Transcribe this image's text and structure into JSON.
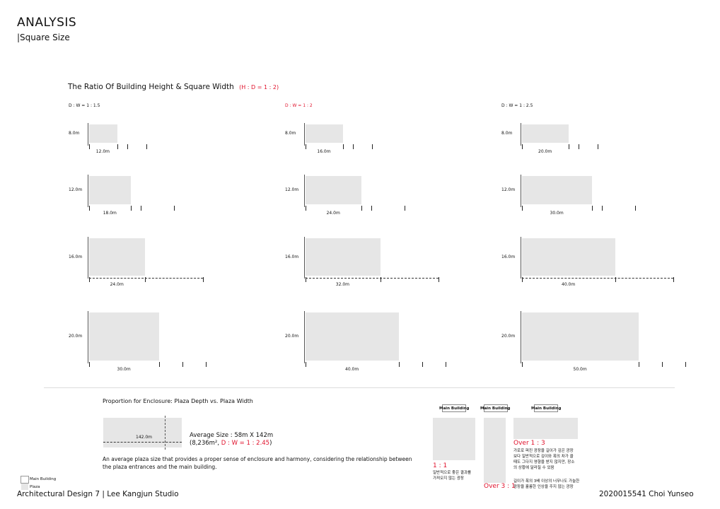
{
  "header": {
    "title": "ANALYSIS",
    "subtitle": "|Square Size"
  },
  "section": {
    "title": "The Ratio Of Building Height & Square Width",
    "highlight": "(H : D = 1 : 2)"
  },
  "columns": [
    {
      "label": "D : W = 1 : 1.5",
      "highlighted": false,
      "rows": [
        {
          "height": "8.0m",
          "width": "12.0m"
        },
        {
          "height": "12.0m",
          "width": "18.0m"
        },
        {
          "height": "16.0m",
          "width": "24.0m"
        },
        {
          "height": "20.0m",
          "width": "30.0m"
        }
      ]
    },
    {
      "label": "D : W = 1 : 2",
      "highlighted": true,
      "rows": [
        {
          "height": "8.0m",
          "width": "16.0m"
        },
        {
          "height": "12.0m",
          "width": "24.0m"
        },
        {
          "height": "16.0m",
          "width": "32.0m"
        },
        {
          "height": "20.0m",
          "width": "40.0m"
        }
      ]
    },
    {
      "label": "D : W = 1 : 2.5",
      "highlighted": false,
      "rows": [
        {
          "height": "8.0m",
          "width": "20.0m"
        },
        {
          "height": "12.0m",
          "width": "30.0m"
        },
        {
          "height": "16.0m",
          "width": "40.0m"
        },
        {
          "height": "20.0m",
          "width": "50.0m"
        }
      ]
    }
  ],
  "proportion": {
    "title": "Proportion for Enclosure: Plaza Depth vs. Plaza Width",
    "plaza_width": "142.0m",
    "avg_line1": "Average Size : 58m X 142m",
    "avg_line2_prefix": "(8,236m², ",
    "avg_line2_ratio": "D : W = 1 : 2.45",
    "avg_line2_suffix": ")",
    "paragraph": "An average plaza size that provides a proper sense of enclosure and harmony, considering the relationship between the plaza entrances and the main building."
  },
  "legend": [
    {
      "label": "Main Building",
      "color": "#ffffff"
    },
    {
      "label": "Plaza",
      "color": "#e6e6e6"
    }
  ],
  "ratios": {
    "main_building_label": "Main Building",
    "r1_title": "1 : 1",
    "r1_text": "일반적으로 좋은 결과를\n가져오지 않는 광장",
    "r2_title": "Over 3 : 1",
    "r3_title": "Over 1 : 3",
    "r3_text1": "가로로 퍼진 광장을 길이가 깊은 광장\n보다 일반적으로 깊이와 폭의 차가 클\n때도 그다지 영향을 받지 않지만, 장소\n의 상황에 달라질 수 있음",
    "r3_text2": "길이가 폭의 3배 이상의 너무나도 가늘한\n광장을 훌륭한 인상을 주지 않는 광장"
  },
  "footer": {
    "left": "Architectural Design 7 | Lee Kangjun Studio",
    "right": "2020015541 Choi Yunseo"
  }
}
